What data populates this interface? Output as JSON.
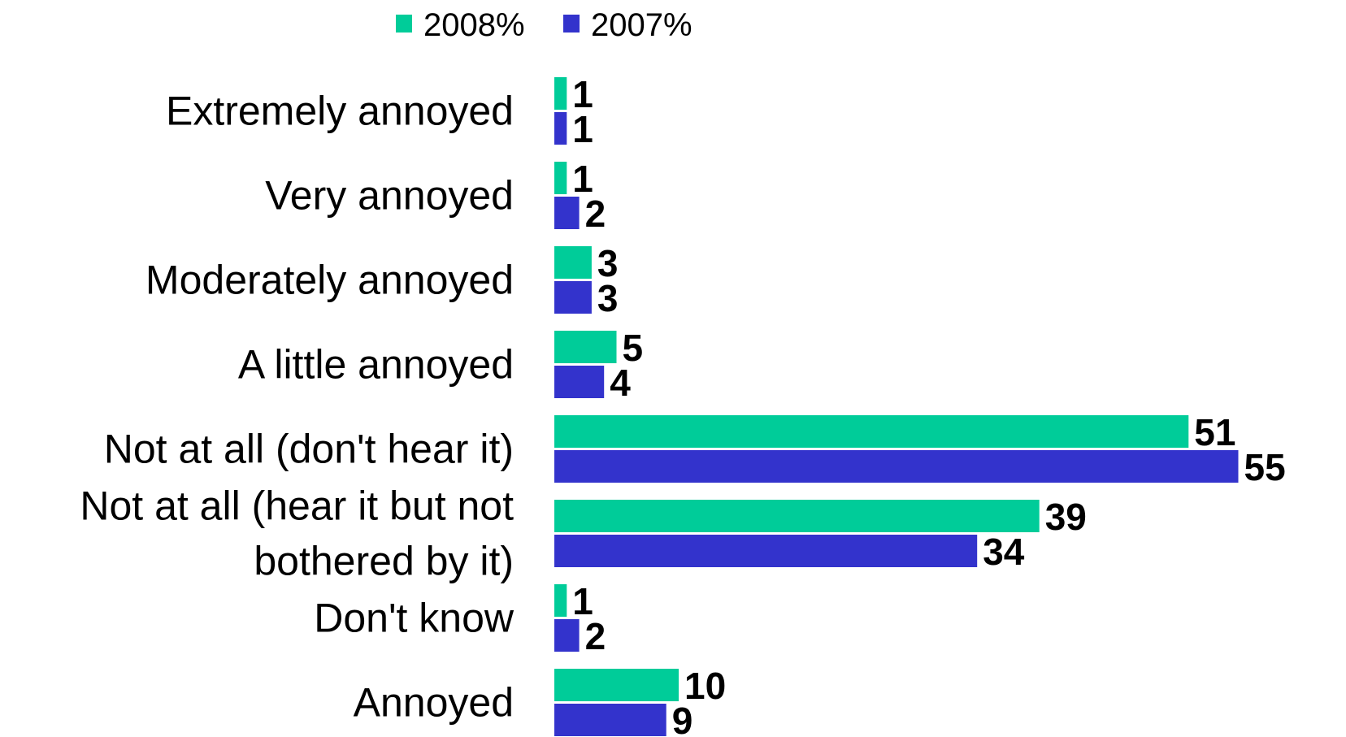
{
  "chart_data": {
    "type": "bar",
    "orientation": "horizontal",
    "categories": [
      [
        "Extremely annoyed"
      ],
      [
        "Very annoyed"
      ],
      [
        "Moderately annoyed"
      ],
      [
        "A little annoyed"
      ],
      [
        "Not at all (don't hear it)"
      ],
      [
        "Not at all (hear it but not",
        "bothered by it)"
      ],
      [
        "Don't know"
      ],
      [
        "Annoyed"
      ]
    ],
    "series": [
      {
        "name": "2008%",
        "color": "#00CC99",
        "values": [
          1,
          1,
          3,
          5,
          51,
          39,
          1,
          10
        ]
      },
      {
        "name": "2007%",
        "color": "#3333CC",
        "values": [
          1,
          2,
          3,
          4,
          55,
          34,
          2,
          9
        ]
      }
    ],
    "xlim": [
      0,
      55
    ],
    "grid": false,
    "legend_position": "top",
    "title": "",
    "xlabel": "",
    "ylabel": ""
  }
}
